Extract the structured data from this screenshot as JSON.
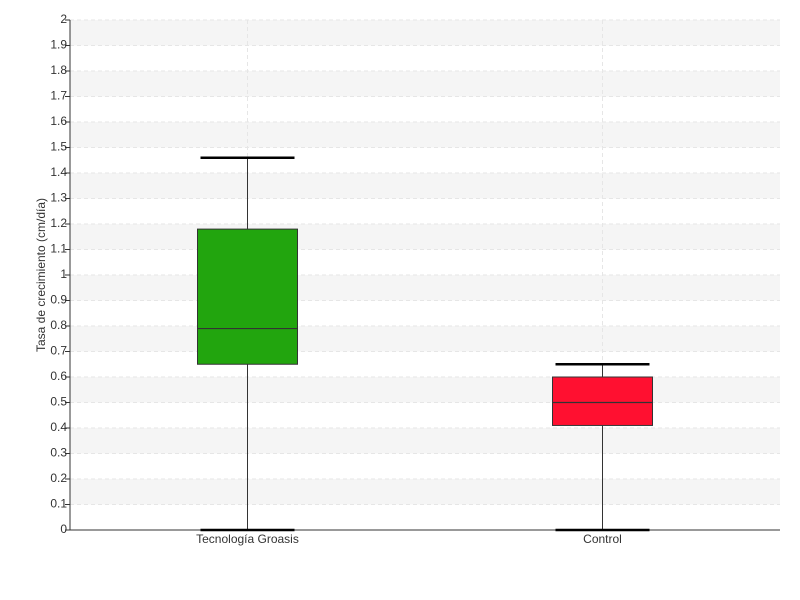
{
  "chart_data": {
    "type": "box",
    "y_label": "Tasa de crecimiento (cm/día)",
    "categories": [
      "Tecnología Groasis",
      "Control"
    ],
    "boxes": [
      {
        "min": 0,
        "q1": 0.65,
        "median": 0.79,
        "q3": 1.18,
        "max": 1.46,
        "color": "#22a50e"
      },
      {
        "min": 0,
        "q1": 0.41,
        "median": 0.5,
        "q3": 0.6,
        "max": 0.65,
        "color": "#ff1030"
      }
    ],
    "ylim": [
      0,
      2
    ],
    "yticks": [
      0,
      0.1,
      0.2,
      0.3,
      0.4,
      0.5,
      0.6,
      0.7,
      0.8,
      0.9,
      1,
      1.1,
      1.2,
      1.3,
      1.4,
      1.5,
      1.6,
      1.7,
      1.8,
      1.9,
      2
    ],
    "grid": true
  }
}
